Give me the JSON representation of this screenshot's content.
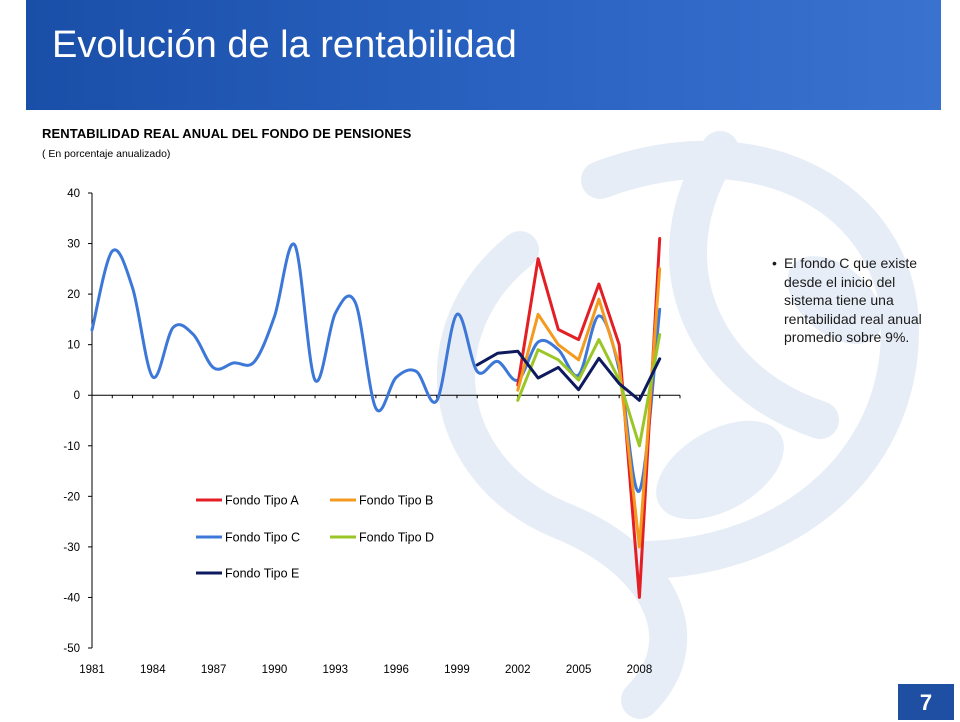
{
  "slide": {
    "title": "Evolución de la rentabilidad",
    "page_number": "7",
    "note_bullet": "•",
    "note": "El fondo C que existe desde el inicio del sistema tiene una rentabilidad real anual promedio sobre 9%."
  },
  "colors": {
    "header": "#2a63c2",
    "watermark": "#dfe8f5",
    "fondo_a": "#e31e24",
    "fondo_b": "#f39a1f",
    "fondo_c": "#3d78d8",
    "fondo_d": "#9bc628",
    "fondo_e": "#0d1b5e"
  },
  "chart_data": {
    "type": "line",
    "title": "RENTABILIDAD REAL ANUAL DEL FONDO DE PENSIONES",
    "subtitle": "( En porcentaje anualizado)",
    "xlabel": "",
    "ylabel": "",
    "ylim": [
      -50,
      40
    ],
    "yticks": [
      40,
      30,
      20,
      10,
      0,
      -10,
      -20,
      -30,
      -40,
      -50
    ],
    "xlim": [
      1981,
      2010
    ],
    "xticks": [
      "1981",
      "1984",
      "1987",
      "1990",
      "1993",
      "1996",
      "1999",
      "2002",
      "2005",
      "2008"
    ],
    "grid": false,
    "legend_position": "lower-left inside plot",
    "series": [
      {
        "name": "Fondo Tipo A",
        "x": [
          2002,
          2003,
          2004,
          2005,
          2006,
          2007,
          2008,
          2009
        ],
        "values": [
          2,
          27,
          13,
          11,
          22,
          10,
          -40,
          31
        ]
      },
      {
        "name": "Fondo Tipo B",
        "x": [
          2002,
          2003,
          2004,
          2005,
          2006,
          2007,
          2008,
          2009
        ],
        "values": [
          1,
          16,
          10,
          7,
          19,
          6,
          -30,
          25
        ]
      },
      {
        "name": "Fondo Tipo C",
        "x": [
          1981,
          1982,
          1983,
          1984,
          1985,
          1986,
          1987,
          1988,
          1989,
          1990,
          1991,
          1992,
          1993,
          1994,
          1995,
          1996,
          1997,
          1998,
          1999,
          2000,
          2001,
          2002,
          2003,
          2004,
          2005,
          2006,
          2007,
          2008,
          2009
        ],
        "values": [
          12.9,
          28.5,
          21.2,
          3.6,
          13.4,
          12.0,
          5.4,
          6.4,
          6.6,
          15.6,
          29.7,
          3.0,
          16.2,
          18.2,
          -2.6,
          3.5,
          4.7,
          -1.1,
          16.0,
          4.7,
          6.7,
          3.0,
          10.5,
          9.0,
          4.0,
          15.7,
          5.0,
          -18.9,
          17.0
        ]
      },
      {
        "name": "Fondo Tipo D",
        "x": [
          2002,
          2003,
          2004,
          2005,
          2006,
          2007,
          2008,
          2009
        ],
        "values": [
          -1,
          9,
          7,
          3,
          11,
          3,
          -10,
          12
        ]
      },
      {
        "name": "Fondo Tipo E",
        "x": [
          2000,
          2001,
          2002,
          2003,
          2004,
          2005,
          2006,
          2007,
          2008,
          2009
        ],
        "values": [
          6,
          8.3,
          8.7,
          3.4,
          5.5,
          1.1,
          7.3,
          2.3,
          -1,
          7.2
        ]
      }
    ]
  }
}
